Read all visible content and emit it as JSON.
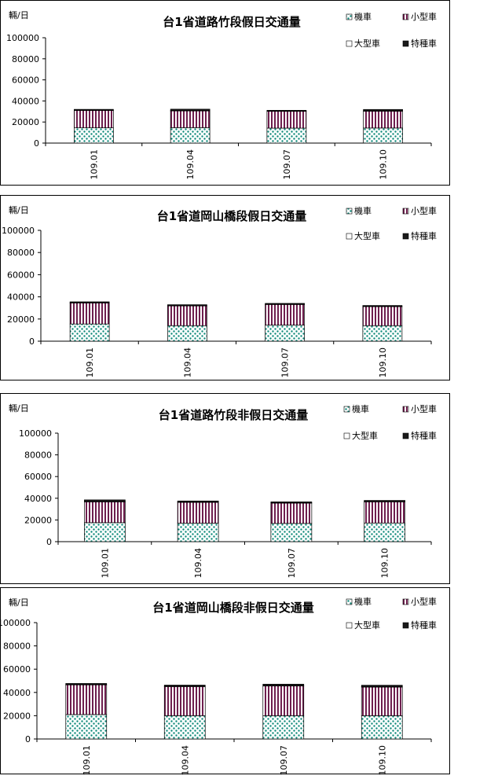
{
  "colors": {
    "motorcycle": "#0f8a7a",
    "small_car": "#6e1f4e",
    "large_car": "#ffffff",
    "special": "#1a1a1a",
    "axis": "#000000",
    "border": "#000000"
  },
  "legend_labels": [
    "機車",
    "小型車",
    "大型車",
    "特種車"
  ],
  "chart_data": [
    {
      "type": "bar",
      "stacked": true,
      "title": "台1省道路竹段假日交通量",
      "ylabel": "輛/日",
      "xlabel": "",
      "ylim": [
        0,
        100000
      ],
      "yticks": [
        0,
        20000,
        40000,
        60000,
        80000,
        100000
      ],
      "categories": [
        "109.01",
        "109.04",
        "109.07",
        "109.10"
      ],
      "legend_position": "top-right",
      "series": [
        {
          "name": "機車",
          "values": [
            14500,
            14600,
            14200,
            14300
          ]
        },
        {
          "name": "小型車",
          "values": [
            16500,
            15900,
            16000,
            16000
          ]
        },
        {
          "name": "大型車",
          "values": [
            300,
            300,
            300,
            300
          ]
        },
        {
          "name": "特種車",
          "values": [
            700,
            1400,
            600,
            1300
          ]
        }
      ]
    },
    {
      "type": "bar",
      "stacked": true,
      "title": "台1省道岡山橋段假日交通量",
      "ylabel": "輛/日",
      "xlabel": "",
      "ylim": [
        0,
        100000
      ],
      "yticks": [
        0,
        20000,
        40000,
        60000,
        80000,
        100000
      ],
      "categories": [
        "109.01",
        "109.04",
        "109.07",
        "109.10"
      ],
      "legend_position": "top-right",
      "series": [
        {
          "name": "機車",
          "values": [
            15500,
            14000,
            14500,
            14000
          ]
        },
        {
          "name": "小型車",
          "values": [
            19000,
            17800,
            18600,
            17200
          ]
        },
        {
          "name": "大型車",
          "values": [
            300,
            300,
            300,
            300
          ]
        },
        {
          "name": "特種車",
          "values": [
            700,
            800,
            700,
            700
          ]
        }
      ]
    },
    {
      "type": "bar",
      "stacked": true,
      "title": "台1省道路竹段非假日交通量",
      "ylabel": "輛/日",
      "xlabel": "",
      "ylim": [
        0,
        100000
      ],
      "yticks": [
        0,
        20000,
        40000,
        60000,
        80000,
        100000
      ],
      "categories": [
        "109.01",
        "109.04",
        "109.07",
        "109.10"
      ],
      "legend_position": "top-right",
      "series": [
        {
          "name": "機車",
          "values": [
            17500,
            17000,
            16800,
            17200
          ]
        },
        {
          "name": "小型車",
          "values": [
            19200,
            19200,
            18700,
            19500
          ]
        },
        {
          "name": "大型車",
          "values": [
            300,
            300,
            300,
            300
          ]
        },
        {
          "name": "特種車",
          "values": [
            1500,
            1000,
            900,
            1000
          ]
        }
      ]
    },
    {
      "type": "bar",
      "stacked": true,
      "title": "台1省道岡山橋段非假日交通量",
      "ylabel": "輛/日",
      "xlabel": "",
      "ylim": [
        0,
        100000
      ],
      "yticks": [
        0,
        20000,
        40000,
        60000,
        80000,
        100000
      ],
      "categories": [
        "109.01",
        "109.04",
        "109.07",
        "109.10"
      ],
      "legend_position": "top-right",
      "series": [
        {
          "name": "機車",
          "values": [
            21000,
            20000,
            20000,
            20000
          ]
        },
        {
          "name": "小型車",
          "values": [
            25500,
            25000,
            25600,
            24600
          ]
        },
        {
          "name": "大型車",
          "values": [
            300,
            300,
            300,
            300
          ]
        },
        {
          "name": "特種車",
          "values": [
            900,
            1000,
            1200,
            1300
          ]
        }
      ]
    }
  ]
}
